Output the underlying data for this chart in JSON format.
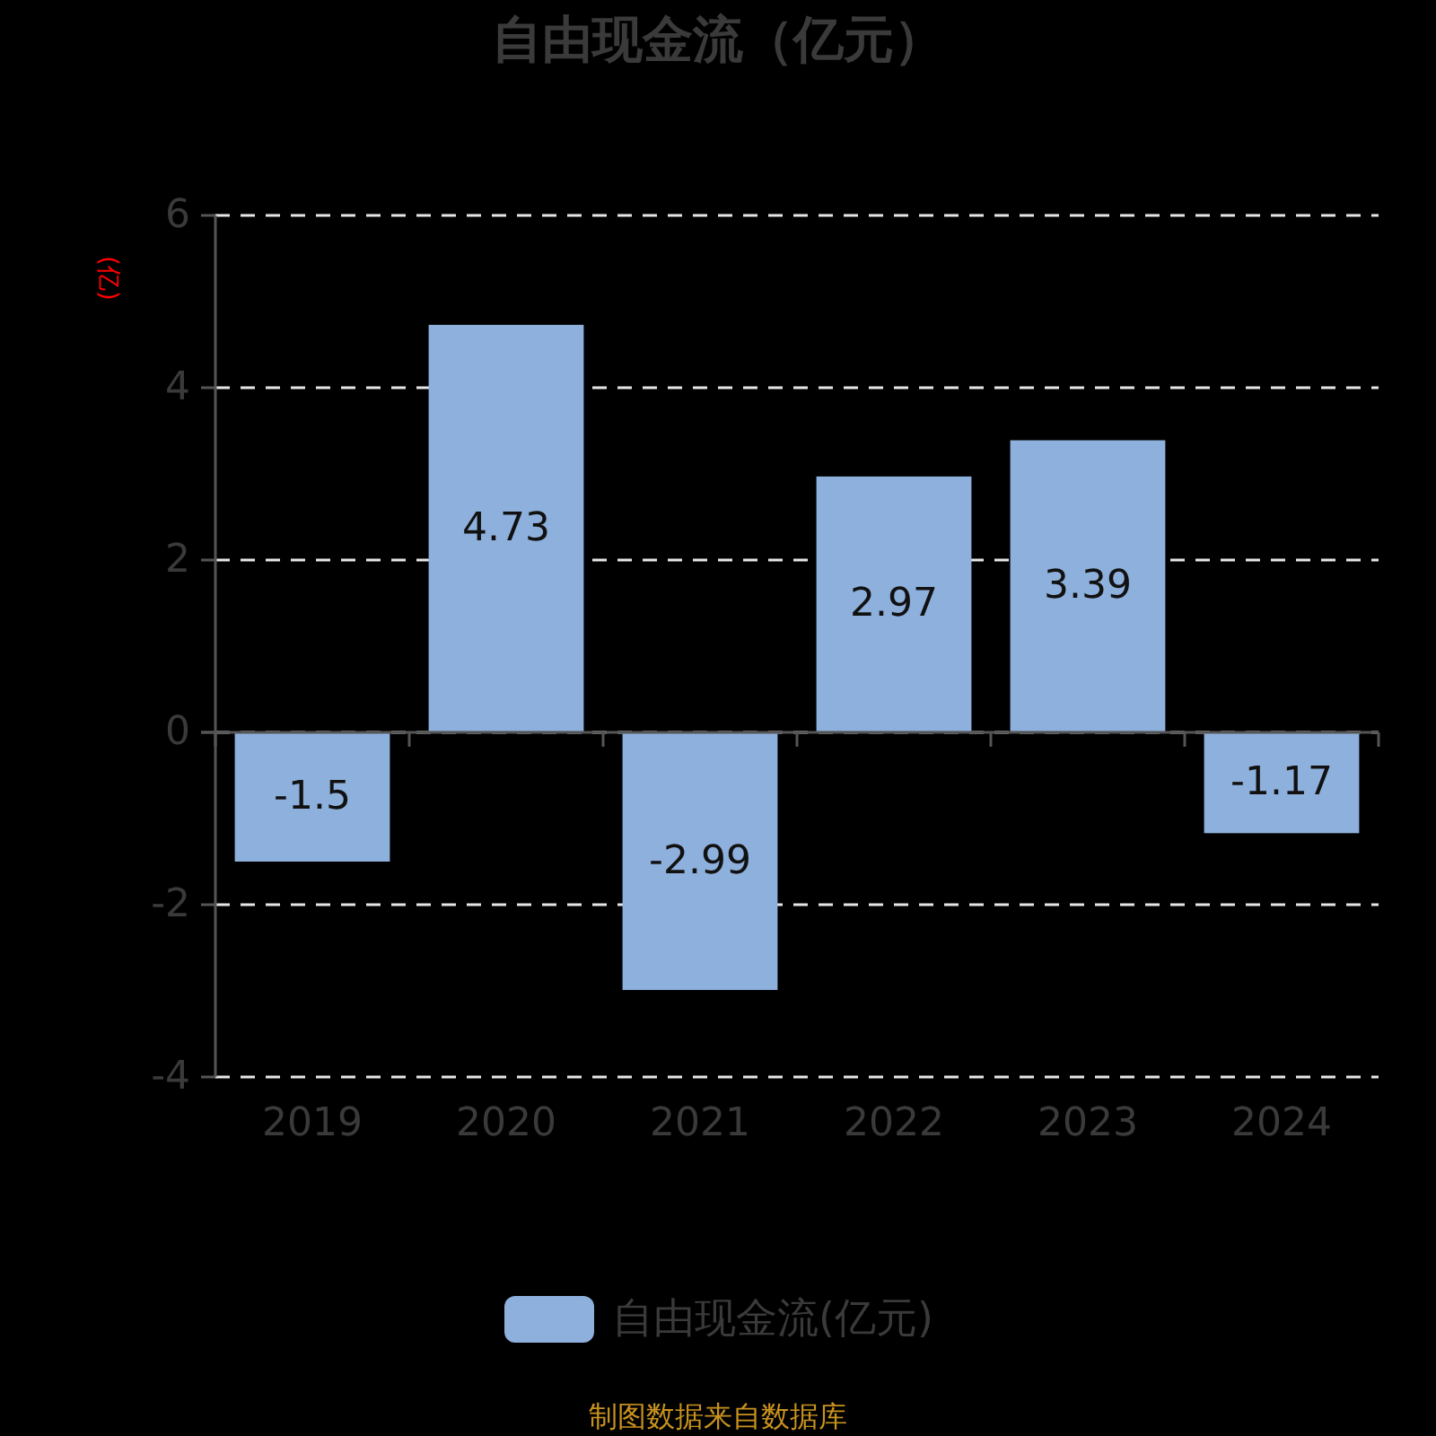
{
  "chart_data": {
    "type": "bar",
    "title": "自由现金流（亿元）",
    "ylabel": "(亿)",
    "categories": [
      "2019",
      "2020",
      "2021",
      "2022",
      "2023",
      "2024"
    ],
    "series": [
      {
        "name": "自由现金流(亿元)",
        "color": "#8eb0dc",
        "values": [
          -1.5,
          4.73,
          -2.99,
          2.97,
          3.39,
          -1.17
        ]
      }
    ],
    "ylim": [
      -4,
      6
    ],
    "yticks": [
      -4,
      -2,
      0,
      2,
      4,
      6
    ],
    "grid": "y",
    "legend": "bottom",
    "data_labels": true,
    "annotations": [
      "制图数据来自数据库"
    ]
  }
}
